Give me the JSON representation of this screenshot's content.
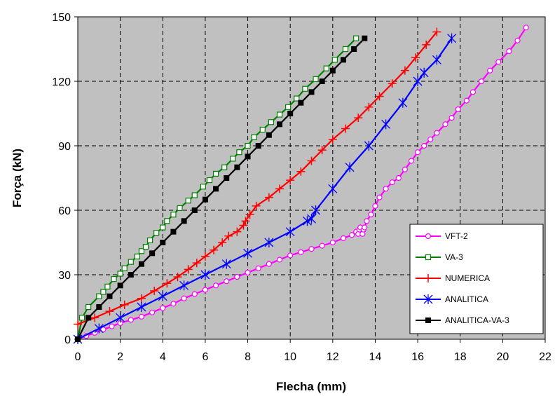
{
  "chart_data": {
    "type": "line",
    "title": "",
    "xlabel": "Flecha (mm)",
    "ylabel": "Força (kN)",
    "xlim": [
      0,
      22
    ],
    "ylim": [
      0,
      150
    ],
    "xticks": [
      0,
      2,
      4,
      6,
      8,
      10,
      12,
      14,
      16,
      18,
      20,
      22
    ],
    "yticks": [
      0,
      30,
      60,
      90,
      120,
      150
    ],
    "grid": true,
    "grid_style": "dashed",
    "plot_background": "#c0c0c0",
    "legend_position": "bottom-right",
    "series": [
      {
        "name": "VFT-2",
        "color": "#ff00ff",
        "marker": "circle-open",
        "points": [
          [
            0,
            0
          ],
          [
            0.4,
            1.5
          ],
          [
            0.8,
            3
          ],
          [
            1.2,
            4.5
          ],
          [
            1.6,
            6
          ],
          [
            2,
            7.5
          ],
          [
            2.5,
            9
          ],
          [
            3,
            10.5
          ],
          [
            3.5,
            12.5
          ],
          [
            4,
            14.5
          ],
          [
            4.5,
            16.5
          ],
          [
            5,
            19
          ],
          [
            5.5,
            21
          ],
          [
            6,
            23
          ],
          [
            6.5,
            25
          ],
          [
            7,
            27
          ],
          [
            7.5,
            29
          ],
          [
            8,
            31
          ],
          [
            8.5,
            33
          ],
          [
            9,
            35
          ],
          [
            9.5,
            37
          ],
          [
            10,
            39
          ],
          [
            10.5,
            40.5
          ],
          [
            11,
            42
          ],
          [
            11.5,
            43.5
          ],
          [
            12,
            45
          ],
          [
            12.5,
            47
          ],
          [
            12.9,
            48.5
          ],
          [
            13.1,
            50
          ],
          [
            13.2,
            49
          ],
          [
            13.25,
            51
          ],
          [
            13.3,
            52
          ],
          [
            13.4,
            49
          ],
          [
            13.45,
            51
          ],
          [
            13.5,
            52
          ],
          [
            13.6,
            55
          ],
          [
            13.8,
            58
          ],
          [
            14,
            62
          ],
          [
            14.2,
            66
          ],
          [
            14.5,
            70
          ],
          [
            14.8,
            73
          ],
          [
            15.1,
            75
          ],
          [
            15.4,
            79
          ],
          [
            15.7,
            83
          ],
          [
            16,
            87
          ],
          [
            16.3,
            90
          ],
          [
            16.6,
            93
          ],
          [
            16.9,
            96
          ],
          [
            17.3,
            100
          ],
          [
            17.6,
            103
          ],
          [
            17.9,
            107
          ],
          [
            18.3,
            111
          ],
          [
            18.6,
            115
          ],
          [
            19,
            120
          ],
          [
            19.4,
            125
          ],
          [
            19.8,
            129
          ],
          [
            20.3,
            134
          ],
          [
            20.7,
            139
          ],
          [
            21.1,
            145
          ]
        ]
      },
      {
        "name": "VA-3",
        "color": "#008000",
        "marker": "square-open",
        "points": [
          [
            0,
            0
          ],
          [
            0.2,
            10
          ],
          [
            0.5,
            15
          ],
          [
            1,
            20
          ],
          [
            1.2,
            22
          ],
          [
            1.4,
            24.5
          ],
          [
            1.7,
            28
          ],
          [
            2,
            30.5
          ],
          [
            2.2,
            33
          ],
          [
            2.5,
            36
          ],
          [
            2.8,
            38.5
          ],
          [
            3,
            41
          ],
          [
            3.2,
            43
          ],
          [
            3.4,
            46
          ],
          [
            3.7,
            49.5
          ],
          [
            4,
            52
          ],
          [
            4.2,
            55
          ],
          [
            4.5,
            58
          ],
          [
            4.8,
            61
          ],
          [
            5.2,
            64.5
          ],
          [
            5.5,
            67
          ],
          [
            5.9,
            71
          ],
          [
            6.2,
            74
          ],
          [
            6.5,
            77
          ],
          [
            6.9,
            80
          ],
          [
            7.3,
            84
          ],
          [
            7.6,
            87
          ],
          [
            8,
            90
          ],
          [
            8.3,
            94
          ],
          [
            8.7,
            97.5
          ],
          [
            9.1,
            101
          ],
          [
            9.5,
            104.5
          ],
          [
            9.9,
            108
          ],
          [
            10.3,
            112
          ],
          [
            10.7,
            116.5
          ],
          [
            11.2,
            121
          ],
          [
            11.7,
            126
          ],
          [
            12.1,
            130
          ],
          [
            12.6,
            135
          ],
          [
            13.1,
            140
          ]
        ]
      },
      {
        "name": "NUMERICA",
        "color": "#ff0000",
        "marker": "plus",
        "points": [
          [
            0,
            7
          ],
          [
            0.8,
            10
          ],
          [
            1.5,
            13
          ],
          [
            2.2,
            16
          ],
          [
            3,
            19
          ],
          [
            3.6,
            22.5
          ],
          [
            4.2,
            26
          ],
          [
            4.7,
            29
          ],
          [
            5.2,
            32.5
          ],
          [
            5.6,
            35.5
          ],
          [
            6,
            38.5
          ],
          [
            6.4,
            41.5
          ],
          [
            6.8,
            45
          ],
          [
            7.1,
            48
          ],
          [
            7.5,
            50
          ],
          [
            7.8,
            53
          ],
          [
            7.9,
            55
          ],
          [
            8.1,
            58
          ],
          [
            8.4,
            62
          ],
          [
            9,
            66
          ],
          [
            9.5,
            70
          ],
          [
            10,
            74
          ],
          [
            10.5,
            78
          ],
          [
            11,
            83
          ],
          [
            11.5,
            88
          ],
          [
            12,
            93
          ],
          [
            12.6,
            98
          ],
          [
            13.2,
            103
          ],
          [
            13.7,
            108
          ],
          [
            14.2,
            113
          ],
          [
            14.8,
            119
          ],
          [
            15.4,
            125
          ],
          [
            15.9,
            131
          ],
          [
            16.4,
            137
          ],
          [
            16.9,
            143
          ]
        ]
      },
      {
        "name": "ANALITICA",
        "color": "#0000ff",
        "marker": "asterisk",
        "points": [
          [
            0,
            0
          ],
          [
            1,
            5
          ],
          [
            2,
            10
          ],
          [
            3,
            15
          ],
          [
            4,
            20
          ],
          [
            5,
            25
          ],
          [
            6,
            30
          ],
          [
            7,
            35
          ],
          [
            8,
            40
          ],
          [
            9,
            45
          ],
          [
            10,
            50
          ],
          [
            10.8,
            55
          ],
          [
            11,
            56
          ],
          [
            11.2,
            60
          ],
          [
            12,
            70
          ],
          [
            12.8,
            80
          ],
          [
            13.7,
            90
          ],
          [
            14.5,
            100
          ],
          [
            15.3,
            110
          ],
          [
            16,
            120
          ],
          [
            16.3,
            124
          ],
          [
            16.9,
            130
          ],
          [
            17.6,
            140
          ]
        ]
      },
      {
        "name": "ANALITICA-VA-3",
        "color": "#000000",
        "marker": "square-filled",
        "points": [
          [
            0,
            0
          ],
          [
            0.5,
            10
          ],
          [
            1,
            15
          ],
          [
            1.5,
            20
          ],
          [
            2,
            25
          ],
          [
            2.5,
            30
          ],
          [
            3,
            35
          ],
          [
            3.5,
            40
          ],
          [
            4,
            45
          ],
          [
            4.5,
            50
          ],
          [
            5,
            55
          ],
          [
            5.5,
            60
          ],
          [
            6,
            65
          ],
          [
            6.5,
            70
          ],
          [
            7,
            75
          ],
          [
            7.5,
            80
          ],
          [
            8,
            85
          ],
          [
            8.5,
            90
          ],
          [
            9,
            95
          ],
          [
            9.5,
            100
          ],
          [
            10,
            105
          ],
          [
            10.5,
            110
          ],
          [
            11,
            115
          ],
          [
            11.5,
            120
          ],
          [
            12,
            125
          ],
          [
            12.5,
            130
          ],
          [
            13,
            135
          ],
          [
            13.5,
            140
          ]
        ]
      }
    ]
  }
}
